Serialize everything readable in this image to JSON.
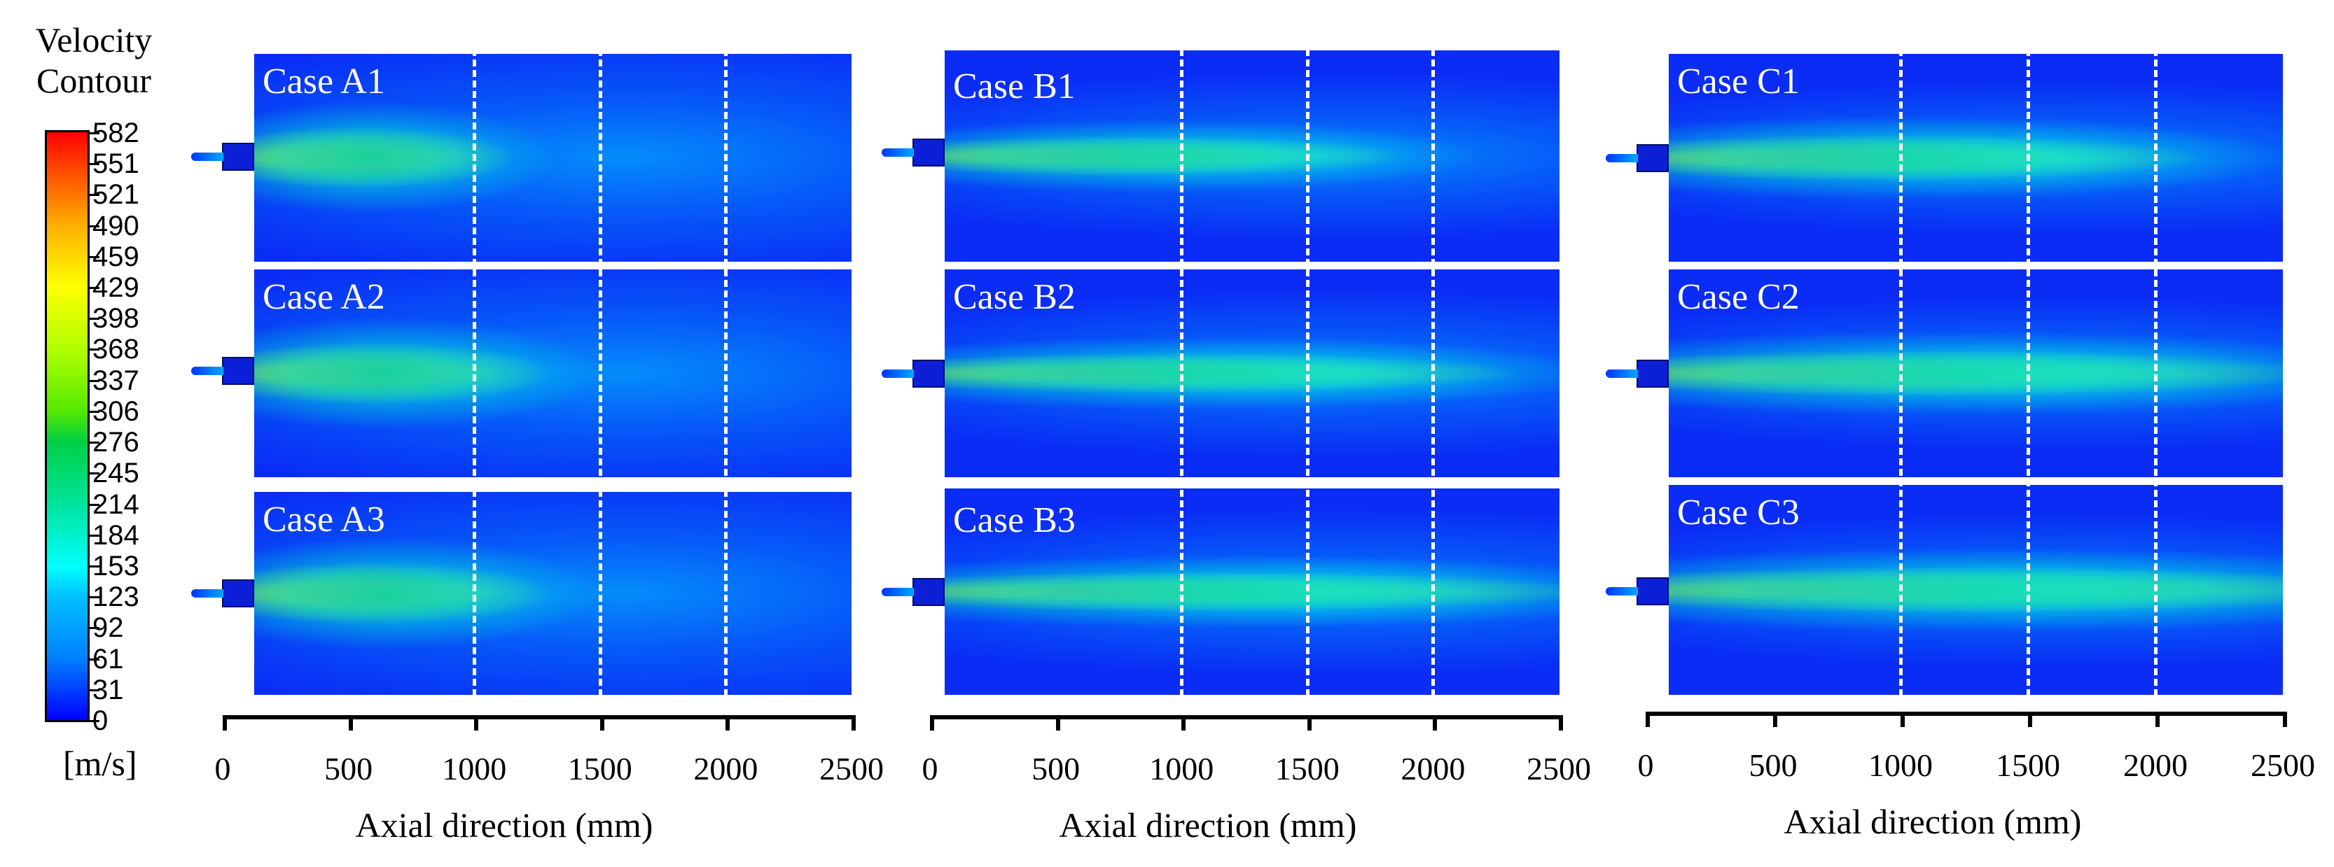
{
  "colorbar": {
    "title_line1": "Velocity",
    "title_line2": "Contour",
    "unit": "[m/s]",
    "labels": [
      "582",
      "551",
      "521",
      "490",
      "459",
      "429",
      "398",
      "368",
      "337",
      "306",
      "276",
      "245",
      "214",
      "184",
      "153",
      "123",
      "92",
      "61",
      "31",
      "0"
    ],
    "colors": {
      "low": "#0000ff",
      "mid": "#00ff00",
      "high": "#ff0000"
    }
  },
  "panels": [
    {
      "cases": [
        "Case A1",
        "Case A2",
        "Case A3"
      ],
      "axis": {
        "ticks": [
          "0",
          "500",
          "1000",
          "1500",
          "2000",
          "2500"
        ],
        "title": "Axial direction (mm)"
      },
      "dashed_lines_mm": [
        1000,
        1500,
        2000
      ]
    },
    {
      "cases": [
        "Case B1",
        "Case B2",
        "Case B3"
      ],
      "axis": {
        "ticks": [
          "0",
          "500",
          "1000",
          "1500",
          "2000",
          "2500"
        ],
        "title": "Axial direction (mm)"
      },
      "dashed_lines_mm": [
        1000,
        1500,
        2000
      ]
    },
    {
      "cases": [
        "Case C1",
        "Case C2",
        "Case C3"
      ],
      "axis": {
        "ticks": [
          "0",
          "500",
          "1000",
          "1500",
          "2000",
          "2500"
        ],
        "title": "Axial direction (mm)"
      },
      "dashed_lines_mm": [
        1000,
        1500,
        2000
      ]
    }
  ]
}
